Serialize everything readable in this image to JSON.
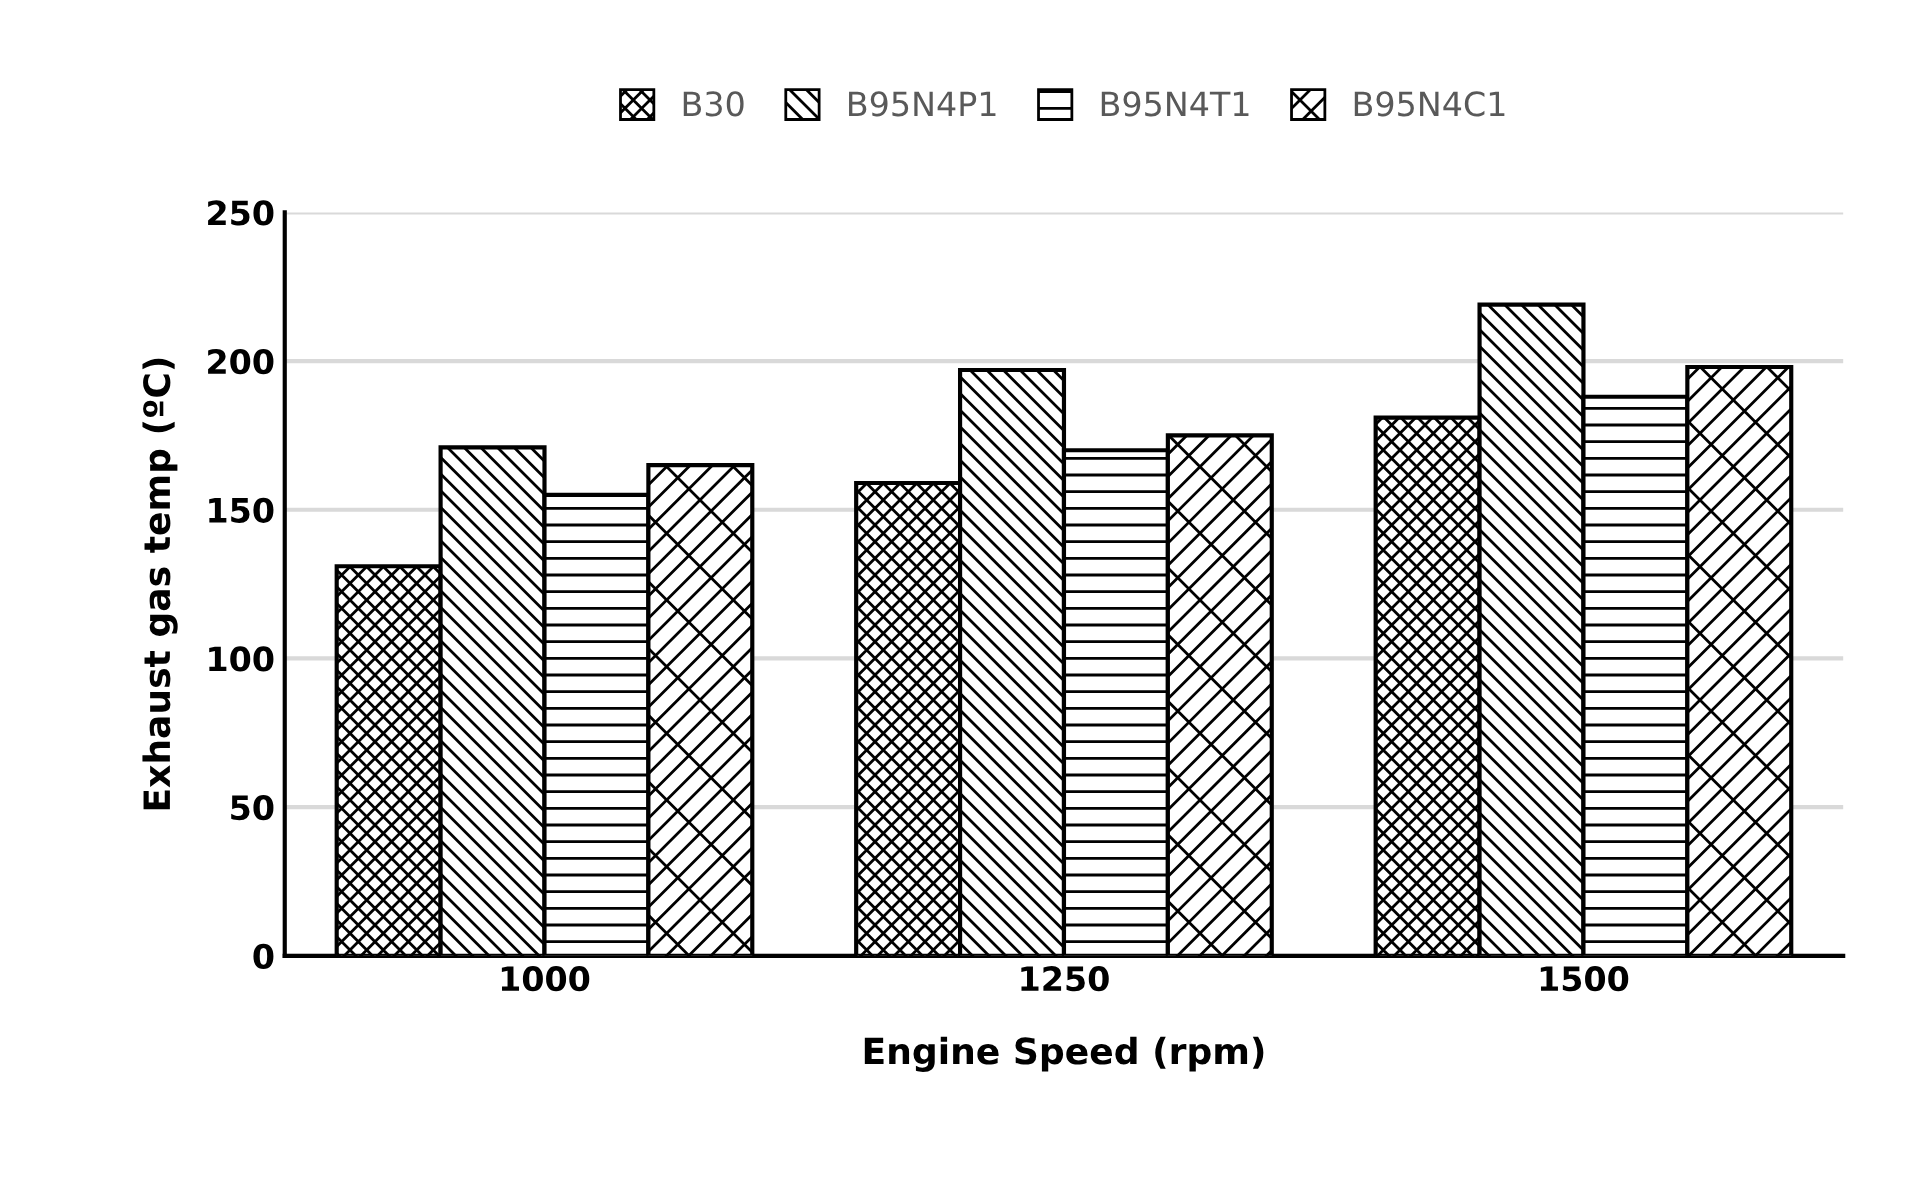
{
  "chart_data": {
    "type": "bar",
    "xlabel": "Engine Speed (rpm)",
    "ylabel": "Exhaust gas temp (ºC)",
    "categories": [
      "1000",
      "1250",
      "1500"
    ],
    "series": [
      {
        "name": "B30",
        "color": "#000000",
        "values": [
          131,
          159,
          181
        ]
      },
      {
        "name": "B95N4P1",
        "color": "#000000",
        "values": [
          171,
          197,
          219
        ]
      },
      {
        "name": "B95N4T1",
        "color": "#000000",
        "values": [
          155,
          170,
          188
        ]
      },
      {
        "name": "B95N4C1",
        "color": "#000000",
        "values": [
          165,
          175,
          198
        ]
      }
    ],
    "ylim": [
      0,
      250
    ],
    "yticks": [
      0,
      50,
      100,
      150,
      200,
      250
    ],
    "grid": "y",
    "legend": "top"
  }
}
